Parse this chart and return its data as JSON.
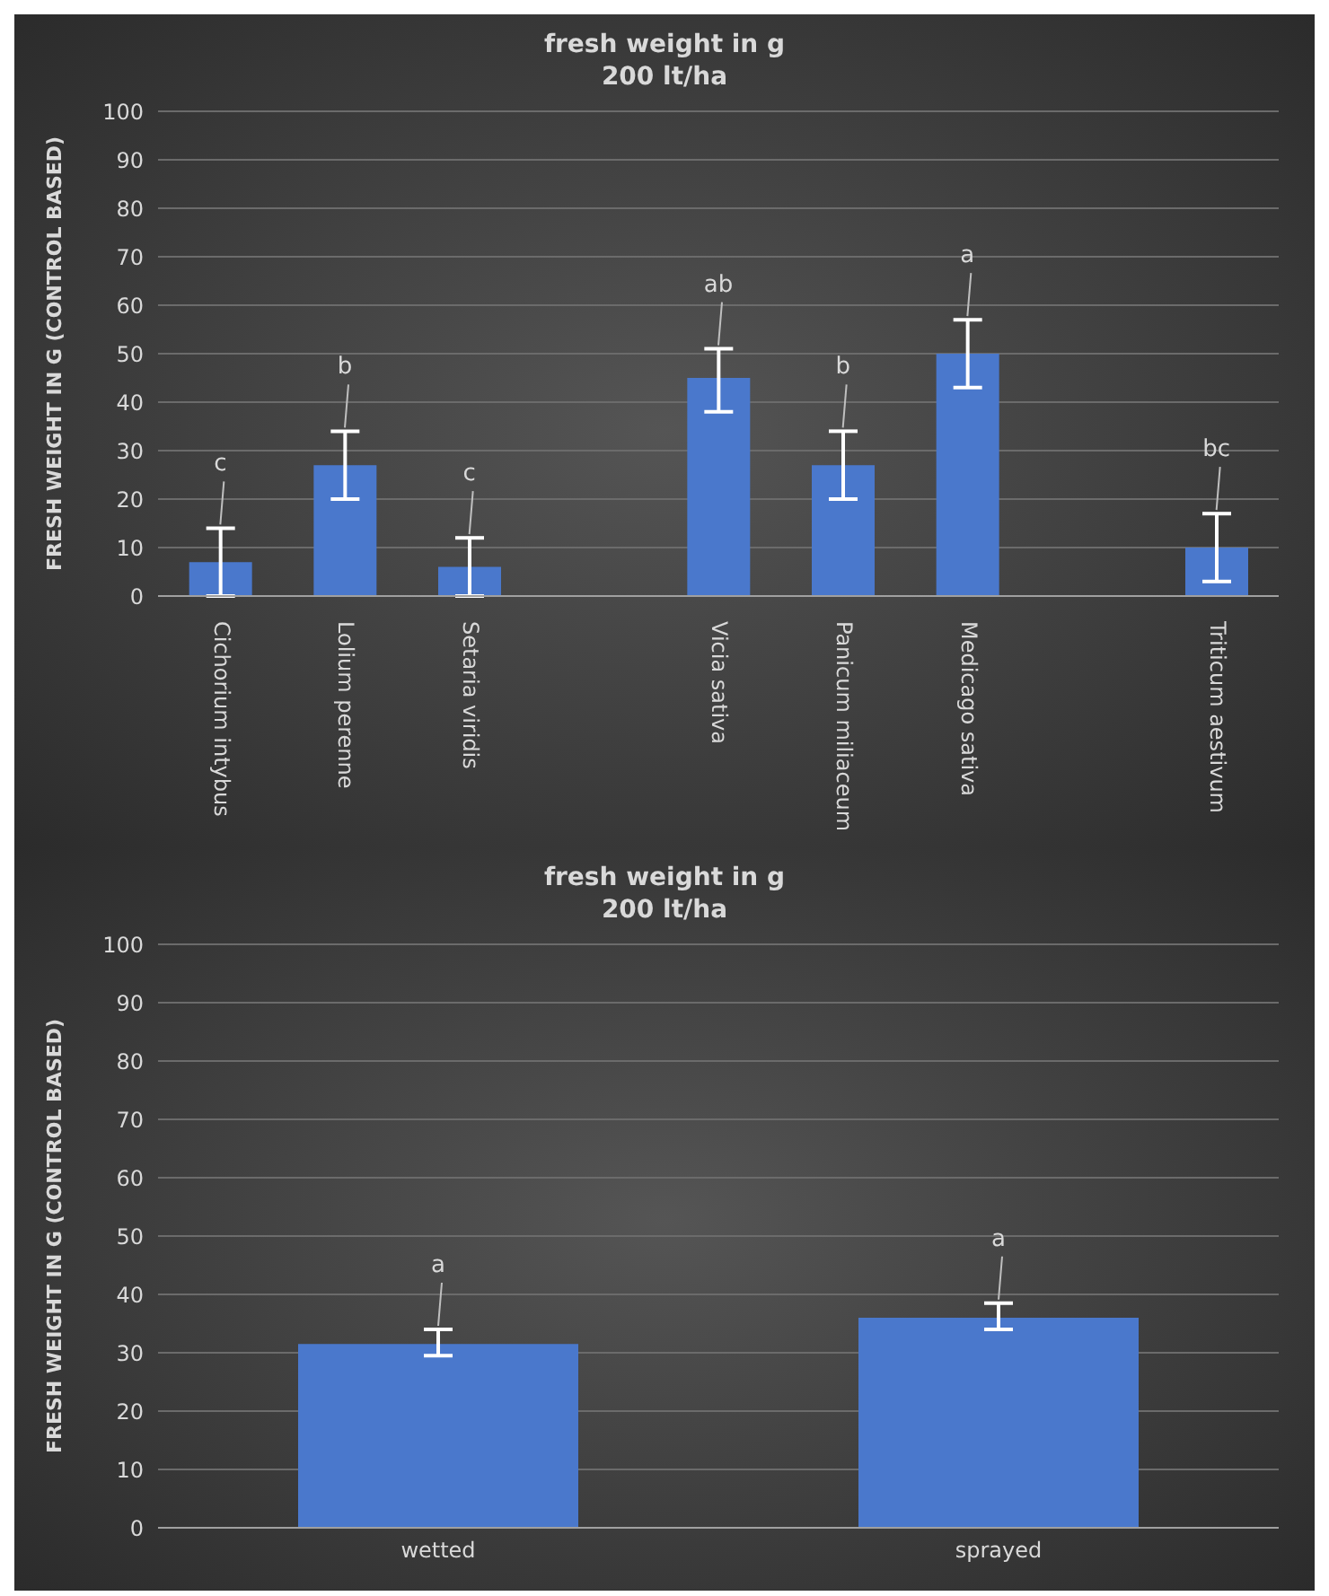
{
  "chart_data": [
    {
      "type": "bar",
      "title": "fresh weight in g\n200 lt/ha",
      "ylabel": "FRESH WEIGHT IN G (CONTROL BASED)",
      "categories": [
        "Cichorium intybus",
        "Lolium perenne",
        "Setaria viridis",
        null,
        "Vicia sativa",
        "Panicum miliaceum",
        "Medicago sativa",
        null,
        "Triticum aestivum"
      ],
      "values": [
        7,
        27,
        6,
        null,
        45,
        27,
        50,
        null,
        10
      ],
      "color": "#4a78cc",
      "errors": [
        [
          0,
          14
        ],
        [
          20,
          34
        ],
        [
          0,
          12
        ],
        null,
        [
          38,
          51
        ],
        [
          20,
          34
        ],
        [
          43,
          57
        ],
        null,
        [
          3,
          17
        ]
      ],
      "ylim": [
        0,
        100
      ],
      "yticks": [
        0,
        10,
        20,
        30,
        40,
        50,
        60,
        70,
        80,
        90,
        100
      ],
      "grid": "y",
      "annotations": [
        "c",
        "b",
        "c",
        "ab",
        "b",
        "a",
        "bc"
      ]
    },
    {
      "type": "bar",
      "title": "fresh weight in g\n200 lt/ha",
      "ylabel": "FRESH WEIGHT IN G (CONTROL BASED)",
      "categories": [
        "wetted",
        "sprayed"
      ],
      "values": [
        31.5,
        36
      ],
      "color": "#4a78cc",
      "errors": [
        [
          29.5,
          34
        ],
        [
          34,
          38.5
        ]
      ],
      "ylim": [
        0,
        100
      ],
      "yticks": [
        0,
        10,
        20,
        30,
        40,
        50,
        60,
        70,
        80,
        90,
        100
      ],
      "grid": "y",
      "annotations": [
        "a",
        "a"
      ]
    }
  ]
}
